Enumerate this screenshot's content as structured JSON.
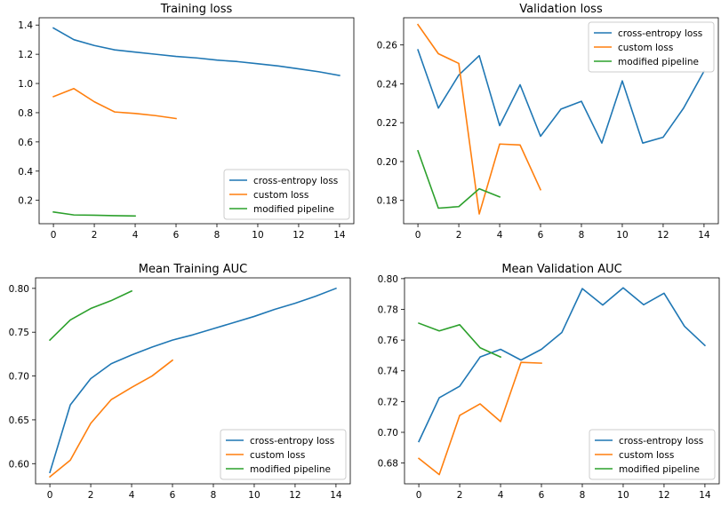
{
  "colors": {
    "cross_entropy": "#1f77b4",
    "custom": "#ff7f0e",
    "modified": "#2ca02c"
  },
  "chart_data": [
    {
      "type": "line",
      "title": "Training loss",
      "xlabel": "",
      "ylabel": "",
      "xlim": [
        -0.7,
        14.7
      ],
      "ylim": [
        0.04,
        1.45
      ],
      "xticks": [
        0,
        2,
        4,
        6,
        8,
        10,
        12,
        14
      ],
      "yticks": [
        0.2,
        0.4,
        0.6,
        0.8,
        1.0,
        1.2,
        1.4
      ],
      "ytick_labels": [
        "0.2",
        "0.4",
        "0.6",
        "0.8",
        "1.0",
        "1.2",
        "1.4"
      ],
      "legend_position": "lower-right",
      "series": [
        {
          "name": "cross-entropy loss",
          "x": [
            0,
            1,
            2,
            3,
            4,
            5,
            6,
            7,
            8,
            9,
            10,
            11,
            12,
            13,
            14
          ],
          "values": [
            1.38,
            1.3,
            1.26,
            1.23,
            1.215,
            1.2,
            1.185,
            1.175,
            1.16,
            1.15,
            1.135,
            1.12,
            1.1,
            1.08,
            1.055
          ]
        },
        {
          "name": "custom loss",
          "x": [
            0,
            1,
            2,
            3,
            4,
            5,
            6
          ],
          "values": [
            0.91,
            0.965,
            0.875,
            0.805,
            0.795,
            0.78,
            0.76
          ]
        },
        {
          "name": "modified pipeline",
          "x": [
            0,
            1,
            2,
            3,
            4
          ],
          "values": [
            0.12,
            0.1,
            0.098,
            0.095,
            0.093
          ]
        }
      ]
    },
    {
      "type": "line",
      "title": "Validation loss",
      "xlabel": "",
      "ylabel": "",
      "xlim": [
        -0.7,
        14.7
      ],
      "ylim": [
        0.168,
        0.274
      ],
      "xticks": [
        0,
        2,
        4,
        6,
        8,
        10,
        12,
        14
      ],
      "yticks": [
        0.18,
        0.2,
        0.22,
        0.24,
        0.26
      ],
      "ytick_labels": [
        "0.18",
        "0.20",
        "0.22",
        "0.24",
        "0.26"
      ],
      "legend_position": "upper-right",
      "series": [
        {
          "name": "cross-entropy loss",
          "x": [
            0,
            1,
            2,
            3,
            4,
            5,
            6,
            7,
            8,
            9,
            10,
            11,
            12,
            13,
            14
          ],
          "values": [
            0.2575,
            0.2275,
            0.2445,
            0.2545,
            0.2185,
            0.2395,
            0.213,
            0.227,
            0.231,
            0.2095,
            0.2415,
            0.2095,
            0.2125,
            0.2275,
            0.2465
          ]
        },
        {
          "name": "custom loss",
          "x": [
            0,
            1,
            2,
            3,
            4,
            5,
            6
          ],
          "values": [
            0.2705,
            0.2555,
            0.2505,
            0.173,
            0.209,
            0.2085,
            0.1855
          ]
        },
        {
          "name": "modified pipeline",
          "x": [
            0,
            1,
            2,
            3,
            4
          ],
          "values": [
            0.2055,
            0.176,
            0.1768,
            0.186,
            0.1818
          ]
        }
      ]
    },
    {
      "type": "line",
      "title": "Mean Training AUC",
      "xlabel": "",
      "ylabel": "",
      "xlim": [
        -0.7,
        14.7
      ],
      "ylim": [
        0.577,
        0.812
      ],
      "xticks": [
        0,
        2,
        4,
        6,
        8,
        10,
        12,
        14
      ],
      "yticks": [
        0.6,
        0.65,
        0.7,
        0.75,
        0.8
      ],
      "ytick_labels": [
        "0.60",
        "0.65",
        "0.70",
        "0.75",
        "0.80"
      ],
      "legend_position": "lower-right",
      "series": [
        {
          "name": "cross-entropy loss",
          "x": [
            0,
            1,
            2,
            3,
            4,
            5,
            6,
            7,
            8,
            9,
            10,
            11,
            12,
            13,
            14
          ],
          "values": [
            0.59,
            0.667,
            0.697,
            0.714,
            0.724,
            0.733,
            0.741,
            0.747,
            0.754,
            0.761,
            0.768,
            0.776,
            0.783,
            0.791,
            0.8
          ]
        },
        {
          "name": "custom loss",
          "x": [
            0,
            1,
            2,
            3,
            4,
            5,
            6
          ],
          "values": [
            0.585,
            0.604,
            0.646,
            0.673,
            0.687,
            0.7,
            0.718
          ]
        },
        {
          "name": "modified pipeline",
          "x": [
            0,
            1,
            2,
            3,
            4
          ],
          "values": [
            0.741,
            0.764,
            0.777,
            0.786,
            0.797
          ]
        }
      ]
    },
    {
      "type": "line",
      "title": "Mean Validation AUC",
      "xlabel": "",
      "ylabel": "",
      "xlim": [
        -0.7,
        14.7
      ],
      "ylim": [
        0.6665,
        0.8005
      ],
      "xticks": [
        0,
        2,
        4,
        6,
        8,
        10,
        12,
        14
      ],
      "yticks": [
        0.68,
        0.7,
        0.72,
        0.74,
        0.76,
        0.78,
        0.8
      ],
      "ytick_labels": [
        "0.68",
        "0.70",
        "0.72",
        "0.74",
        "0.76",
        "0.78",
        "0.80"
      ],
      "legend_position": "lower-right",
      "series": [
        {
          "name": "cross-entropy loss",
          "x": [
            0,
            1,
            2,
            3,
            4,
            5,
            6,
            7,
            8,
            9,
            10,
            11,
            12,
            13,
            14
          ],
          "values": [
            0.694,
            0.7225,
            0.73,
            0.749,
            0.754,
            0.747,
            0.754,
            0.765,
            0.7935,
            0.7828,
            0.794,
            0.783,
            0.7905,
            0.769,
            0.7565
          ]
        },
        {
          "name": "custom loss",
          "x": [
            0,
            1,
            2,
            3,
            4,
            5,
            6
          ],
          "values": [
            0.683,
            0.6725,
            0.711,
            0.7185,
            0.707,
            0.7455,
            0.745
          ]
        },
        {
          "name": "modified pipeline",
          "x": [
            0,
            1,
            2,
            3,
            4
          ],
          "values": [
            0.771,
            0.766,
            0.77,
            0.755,
            0.749
          ]
        }
      ]
    }
  ]
}
